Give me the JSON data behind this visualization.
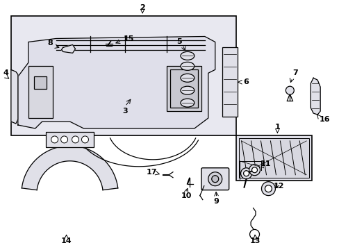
{
  "background_color": "#ffffff",
  "line_color": "#000000",
  "box_fill": "#e8e8f0",
  "part_fill": "#e0e0e8",
  "white": "#ffffff"
}
